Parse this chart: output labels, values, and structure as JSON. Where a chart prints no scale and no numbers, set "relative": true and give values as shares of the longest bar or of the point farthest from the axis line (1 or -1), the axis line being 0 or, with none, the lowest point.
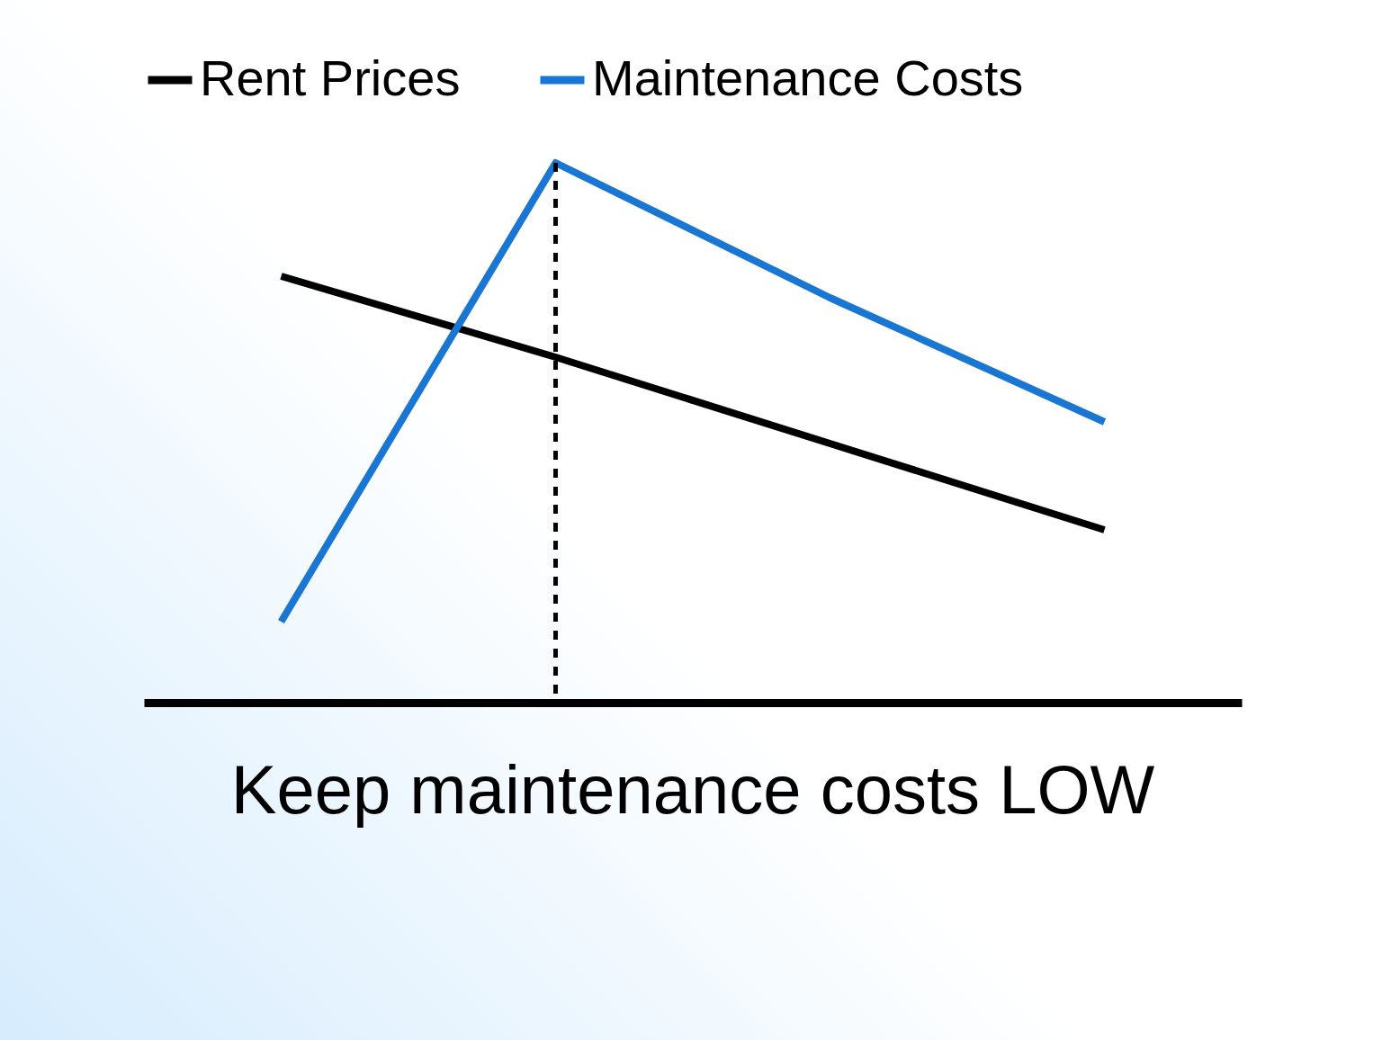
{
  "chart_data": {
    "type": "line",
    "title": "Keep maintenance costs LOW",
    "relative": true,
    "categories": [
      null,
      null,
      null,
      null
    ],
    "legend": "top",
    "grid": false,
    "line_style": "solid",
    "marker": "none",
    "series": [
      {
        "name": "Rent Prices",
        "color": "#000000",
        "values": [
          0.79,
          0.64,
          0.48,
          0.32
        ]
      },
      {
        "name": "Maintenance Costs",
        "color": "#1976d2",
        "values": [
          0.15,
          1,
          0.75,
          0.52
        ]
      }
    ]
  }
}
